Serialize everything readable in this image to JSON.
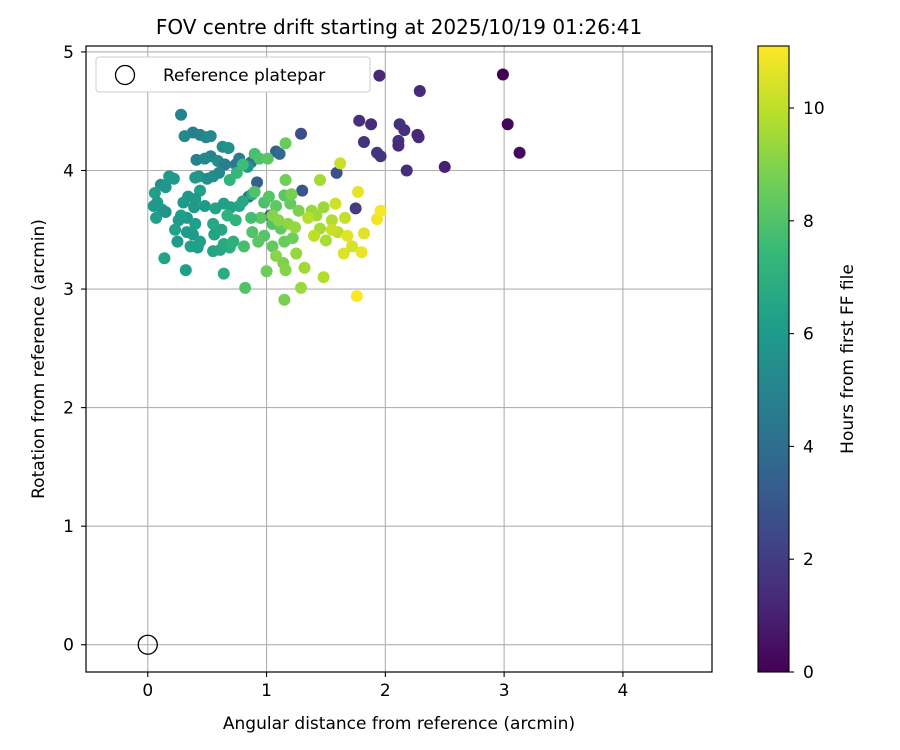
{
  "chart_data": {
    "type": "scatter",
    "title": "FOV centre drift starting at 2025/10/19 01:26:41",
    "xlabel": "Angular distance from reference (arcmin)",
    "ylabel": "Rotation from reference (arcmin)",
    "xlim": [
      -0.52,
      4.75
    ],
    "ylim": [
      -0.23,
      5.05
    ],
    "xticks": [
      0,
      1,
      2,
      3,
      4
    ],
    "yticks": [
      0,
      1,
      2,
      3,
      4,
      5
    ],
    "grid": true,
    "legend": {
      "position": "top-left",
      "entries": [
        "Reference platepar"
      ]
    },
    "reference_point": {
      "x": 0,
      "y": 0
    },
    "colorbar": {
      "label": "Hours from first FF file",
      "min": 0,
      "max": 11.1,
      "ticks": [
        0,
        2,
        4,
        6,
        8,
        10
      ],
      "colormap": "viridis"
    },
    "colormap_stops": [
      "#440154",
      "#482878",
      "#3e4989",
      "#31688e",
      "#26828e",
      "#1f9e89",
      "#35b779",
      "#6ece58",
      "#b5de2b",
      "#fde725"
    ],
    "points": [
      [
        2.99,
        4.81,
        0.0
      ],
      [
        3.03,
        4.39,
        0.2
      ],
      [
        3.13,
        4.15,
        0.3
      ],
      [
        1.95,
        4.8,
        1.2
      ],
      [
        2.29,
        4.67,
        1.3
      ],
      [
        1.78,
        4.42,
        1.5
      ],
      [
        1.88,
        4.39,
        1.4
      ],
      [
        2.12,
        4.39,
        1.6
      ],
      [
        2.16,
        4.34,
        1.5
      ],
      [
        2.28,
        4.28,
        1.4
      ],
      [
        2.27,
        4.3,
        1.2
      ],
      [
        2.11,
        4.25,
        1.7
      ],
      [
        2.11,
        4.21,
        1.3
      ],
      [
        1.82,
        4.24,
        1.6
      ],
      [
        1.93,
        4.15,
        1.8
      ],
      [
        1.96,
        4.12,
        1.7
      ],
      [
        2.5,
        4.03,
        1.0
      ],
      [
        2.18,
        4.0,
        1.5
      ],
      [
        1.75,
        3.68,
        2.0
      ],
      [
        1.29,
        4.31,
        2.6
      ],
      [
        1.59,
        3.98,
        2.8
      ],
      [
        1.3,
        3.83,
        3.0
      ],
      [
        0.92,
        3.9,
        3.4
      ],
      [
        1.08,
        4.16,
        3.5
      ],
      [
        1.03,
        3.62,
        3.6
      ],
      [
        0.85,
        3.78,
        3.9
      ],
      [
        1.11,
        4.14,
        3.8
      ],
      [
        0.28,
        4.47,
        5.0
      ],
      [
        0.38,
        4.32,
        4.8
      ],
      [
        0.31,
        4.29,
        5.2
      ],
      [
        0.44,
        4.3,
        4.9
      ],
      [
        0.49,
        4.28,
        5.1
      ],
      [
        0.53,
        4.29,
        5.3
      ],
      [
        0.63,
        4.2,
        5.5
      ],
      [
        0.68,
        4.19,
        5.6
      ],
      [
        0.53,
        4.12,
        5.0
      ],
      [
        0.41,
        4.09,
        4.9
      ],
      [
        0.48,
        4.1,
        5.2
      ],
      [
        0.59,
        4.08,
        5.4
      ],
      [
        0.65,
        4.05,
        4.7
      ],
      [
        0.77,
        4.1,
        4.6
      ],
      [
        0.74,
        4.05,
        4.5
      ],
      [
        0.87,
        4.07,
        4.4
      ],
      [
        0.84,
        4.03,
        5.8
      ],
      [
        0.43,
        3.95,
        5.7
      ],
      [
        0.5,
        3.93,
        5.5
      ],
      [
        0.55,
        3.95,
        5.4
      ],
      [
        0.6,
        3.98,
        5.2
      ],
      [
        0.4,
        3.94,
        5.9
      ],
      [
        0.18,
        3.95,
        6.1
      ],
      [
        0.22,
        3.93,
        6.0
      ],
      [
        0.11,
        3.88,
        5.6
      ],
      [
        0.15,
        3.86,
        5.8
      ],
      [
        0.06,
        3.81,
        6.2
      ],
      [
        0.08,
        3.73,
        6.0
      ],
      [
        0.05,
        3.7,
        5.9
      ],
      [
        0.12,
        3.67,
        6.1
      ],
      [
        0.15,
        3.65,
        5.7
      ],
      [
        0.07,
        3.6,
        6.2
      ],
      [
        0.44,
        3.83,
        6.3
      ],
      [
        0.34,
        3.78,
        5.8
      ],
      [
        0.4,
        3.76,
        6.0
      ],
      [
        0.3,
        3.73,
        6.1
      ],
      [
        0.39,
        3.69,
        5.9
      ],
      [
        0.48,
        3.7,
        6.0
      ],
      [
        0.57,
        3.68,
        6.4
      ],
      [
        0.64,
        3.72,
        6.2
      ],
      [
        0.7,
        3.69,
        6.3
      ],
      [
        0.77,
        3.7,
        6.5
      ],
      [
        0.8,
        3.74,
        6.6
      ],
      [
        0.88,
        3.8,
        6.8
      ],
      [
        0.33,
        3.6,
        6.0
      ],
      [
        0.28,
        3.62,
        6.2
      ],
      [
        0.26,
        3.58,
        6.1
      ],
      [
        0.4,
        3.55,
        6.2
      ],
      [
        0.23,
        3.5,
        6.3
      ],
      [
        0.33,
        3.48,
        6.0
      ],
      [
        0.38,
        3.46,
        6.1
      ],
      [
        0.44,
        3.4,
        6.2
      ],
      [
        0.56,
        3.46,
        6.4
      ],
      [
        0.62,
        3.5,
        6.5
      ],
      [
        0.55,
        3.55,
        6.6
      ],
      [
        0.64,
        3.38,
        6.7
      ],
      [
        0.69,
        3.35,
        6.9
      ],
      [
        0.36,
        3.36,
        6.3
      ],
      [
        0.42,
        3.35,
        6.2
      ],
      [
        0.25,
        3.4,
        6.0
      ],
      [
        0.14,
        3.26,
        6.4
      ],
      [
        0.32,
        3.16,
        6.2
      ],
      [
        0.64,
        3.13,
        6.8
      ],
      [
        0.55,
        3.32,
        6.5
      ],
      [
        0.61,
        3.33,
        6.6
      ],
      [
        0.72,
        3.4,
        7.0
      ],
      [
        0.67,
        3.62,
        7.1
      ],
      [
        0.74,
        3.58,
        7.2
      ],
      [
        0.69,
        3.92,
        7.3
      ],
      [
        0.75,
        3.98,
        7.4
      ],
      [
        0.8,
        4.05,
        7.6
      ],
      [
        0.9,
        4.14,
        7.8
      ],
      [
        0.94,
        4.1,
        8.0
      ],
      [
        1.01,
        4.1,
        8.2
      ],
      [
        1.16,
        4.23,
        8.5
      ],
      [
        0.98,
        3.73,
        7.9
      ],
      [
        0.9,
        3.82,
        8.0
      ],
      [
        1.02,
        3.78,
        8.1
      ],
      [
        1.08,
        3.7,
        8.3
      ],
      [
        1.15,
        3.79,
        8.2
      ],
      [
        1.2,
        3.72,
        8.4
      ],
      [
        0.95,
        3.6,
        8.2
      ],
      [
        1.05,
        3.55,
        8.0
      ],
      [
        1.12,
        3.51,
        8.3
      ],
      [
        0.98,
        3.45,
        8.1
      ],
      [
        0.88,
        3.48,
        8.0
      ],
      [
        0.93,
        3.4,
        8.2
      ],
      [
        1.05,
        3.36,
        8.4
      ],
      [
        1.15,
        3.4,
        8.5
      ],
      [
        1.22,
        3.43,
        8.6
      ],
      [
        0.81,
        3.36,
        7.8
      ],
      [
        0.87,
        3.6,
        7.7
      ],
      [
        0.82,
        3.01,
        8.0
      ],
      [
        1.0,
        3.15,
        8.6
      ],
      [
        1.14,
        3.22,
        8.9
      ],
      [
        1.16,
        3.16,
        9.0
      ],
      [
        1.15,
        2.91,
        8.8
      ],
      [
        1.16,
        3.92,
        8.7
      ],
      [
        1.21,
        3.8,
        8.8
      ],
      [
        1.27,
        3.66,
        8.9
      ],
      [
        1.05,
        3.62,
        9.0
      ],
      [
        1.1,
        3.58,
        9.1
      ],
      [
        1.18,
        3.55,
        9.2
      ],
      [
        1.24,
        3.52,
        9.3
      ],
      [
        1.08,
        3.28,
        9.1
      ],
      [
        1.25,
        3.3,
        9.3
      ],
      [
        1.32,
        3.18,
        9.5
      ],
      [
        1.29,
        3.01,
        9.4
      ],
      [
        1.38,
        3.66,
        9.3
      ],
      [
        1.42,
        3.62,
        9.5
      ],
      [
        1.45,
        3.51,
        9.6
      ],
      [
        1.48,
        3.69,
        9.4
      ],
      [
        1.45,
        3.92,
        9.6
      ],
      [
        1.55,
        3.58,
        9.8
      ],
      [
        1.5,
        3.41,
        9.7
      ],
      [
        1.48,
        3.1,
        9.8
      ],
      [
        1.6,
        3.48,
        10.0
      ],
      [
        1.62,
        4.06,
        10.2
      ],
      [
        1.66,
        3.6,
        10.1
      ],
      [
        1.58,
        3.72,
        10.3
      ],
      [
        1.72,
        3.36,
        10.4
      ],
      [
        1.65,
        3.3,
        10.5
      ],
      [
        1.82,
        3.47,
        10.6
      ],
      [
        1.77,
        3.82,
        10.7
      ],
      [
        1.8,
        3.31,
        10.8
      ],
      [
        1.93,
        3.59,
        10.9
      ],
      [
        1.96,
        3.66,
        11.0
      ],
      [
        1.76,
        2.94,
        11.1
      ],
      [
        1.55,
        3.5,
        10.2
      ],
      [
        1.4,
        3.45,
        10.0
      ],
      [
        1.35,
        3.6,
        9.9
      ],
      [
        1.68,
        3.45,
        10.6
      ]
    ]
  }
}
